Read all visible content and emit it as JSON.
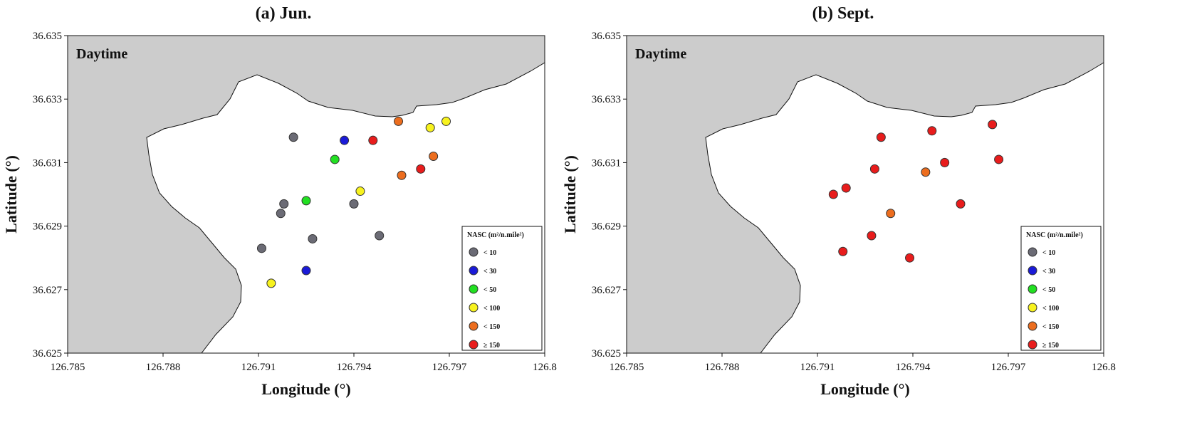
{
  "panels": [
    {
      "title": "(a) Jun.",
      "annotation": "Daytime"
    },
    {
      "title": "(b) Sept.",
      "annotation": "Daytime"
    }
  ],
  "legend": {
    "title": "NASC (m²/n.mile²)",
    "classes": [
      {
        "label": "< 10",
        "color": "#6b6b75"
      },
      {
        "label": "< 30",
        "color": "#1a1ad8"
      },
      {
        "label": "< 50",
        "color": "#22e022"
      },
      {
        "label": "< 100",
        "color": "#f7f21e"
      },
      {
        "label": "< 150",
        "color": "#ec6d1e"
      },
      {
        "label": "≥ 150",
        "color": "#e81c1c"
      }
    ]
  },
  "colors": {
    "land": "#cccccc",
    "water": "#ffffff"
  },
  "chart_data": [
    {
      "type": "scatter",
      "title": "(a) Jun.",
      "annotation": "Daytime",
      "xlabel": "Longitude (°)",
      "ylabel": "Latitude (°)",
      "xlim": [
        126.785,
        126.8
      ],
      "ylim": [
        36.625,
        36.635
      ],
      "xticks": [
        "126.785",
        "126.788",
        "126.791",
        "126.794",
        "126.797",
        "126.8"
      ],
      "yticks": [
        "36.625",
        "36.627",
        "36.629",
        "36.631",
        "36.633",
        "36.635"
      ],
      "legend_position": "bottom-right",
      "points": [
        {
          "lon": 126.7921,
          "lat": 36.6318,
          "cls": 0
        },
        {
          "lon": 126.7937,
          "lat": 36.6317,
          "cls": 1
        },
        {
          "lon": 126.7946,
          "lat": 36.6317,
          "cls": 5
        },
        {
          "lon": 126.7954,
          "lat": 36.6323,
          "cls": 4
        },
        {
          "lon": 126.7964,
          "lat": 36.6321,
          "cls": 3
        },
        {
          "lon": 126.7969,
          "lat": 36.6323,
          "cls": 3
        },
        {
          "lon": 126.7934,
          "lat": 36.6311,
          "cls": 2
        },
        {
          "lon": 126.7965,
          "lat": 36.6312,
          "cls": 4
        },
        {
          "lon": 126.7961,
          "lat": 36.6308,
          "cls": 5
        },
        {
          "lon": 126.7955,
          "lat": 36.6306,
          "cls": 4
        },
        {
          "lon": 126.7942,
          "lat": 36.6301,
          "cls": 3
        },
        {
          "lon": 126.7925,
          "lat": 36.6298,
          "cls": 2
        },
        {
          "lon": 126.7918,
          "lat": 36.6297,
          "cls": 0
        },
        {
          "lon": 126.7917,
          "lat": 36.6294,
          "cls": 0
        },
        {
          "lon": 126.794,
          "lat": 36.6297,
          "cls": 0
        },
        {
          "lon": 126.7948,
          "lat": 36.6287,
          "cls": 0
        },
        {
          "lon": 126.7927,
          "lat": 36.6286,
          "cls": 0
        },
        {
          "lon": 126.7911,
          "lat": 36.6283,
          "cls": 0
        },
        {
          "lon": 126.7925,
          "lat": 36.6276,
          "cls": 1
        },
        {
          "lon": 126.7914,
          "lat": 36.6272,
          "cls": 3
        }
      ]
    },
    {
      "type": "scatter",
      "title": "(b) Sept.",
      "annotation": "Daytime",
      "xlabel": "Longitude (°)",
      "ylabel": "Latitude (°)",
      "xlim": [
        126.785,
        126.8
      ],
      "ylim": [
        36.625,
        36.635
      ],
      "xticks": [
        "126.785",
        "126.788",
        "126.791",
        "126.794",
        "126.797",
        "126.8"
      ],
      "yticks": [
        "36.625",
        "36.627",
        "36.629",
        "36.631",
        "36.633",
        "36.635"
      ],
      "legend_position": "bottom-right",
      "points": [
        {
          "lon": 126.793,
          "lat": 36.6318,
          "cls": 5
        },
        {
          "lon": 126.7946,
          "lat": 36.632,
          "cls": 5
        },
        {
          "lon": 126.7965,
          "lat": 36.6322,
          "cls": 5
        },
        {
          "lon": 126.7928,
          "lat": 36.6308,
          "cls": 5
        },
        {
          "lon": 126.7944,
          "lat": 36.6307,
          "cls": 4
        },
        {
          "lon": 126.795,
          "lat": 36.631,
          "cls": 5
        },
        {
          "lon": 126.7967,
          "lat": 36.6311,
          "cls": 5
        },
        {
          "lon": 126.7919,
          "lat": 36.6302,
          "cls": 5
        },
        {
          "lon": 126.7915,
          "lat": 36.63,
          "cls": 5
        },
        {
          "lon": 126.7955,
          "lat": 36.6297,
          "cls": 5
        },
        {
          "lon": 126.7933,
          "lat": 36.6294,
          "cls": 4
        },
        {
          "lon": 126.7927,
          "lat": 36.6287,
          "cls": 5
        },
        {
          "lon": 126.7918,
          "lat": 36.6282,
          "cls": 5
        },
        {
          "lon": 126.7939,
          "lat": 36.628,
          "cls": 5
        }
      ]
    }
  ]
}
